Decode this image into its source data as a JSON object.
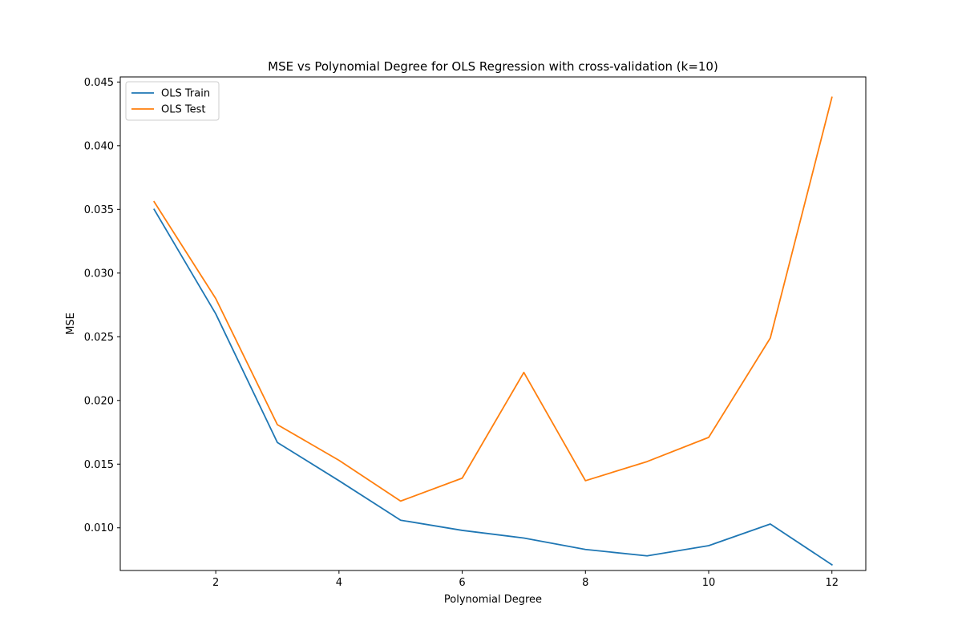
{
  "chart_data": {
    "type": "line",
    "title": "MSE vs Polynomial Degree for OLS Regression with cross-validation (k=10)",
    "xlabel": "Polynomial Degree",
    "ylabel": "MSE",
    "xlim": [
      0.45,
      12.55
    ],
    "ylim": [
      0.00665,
      0.0454
    ],
    "xticks": [
      2,
      4,
      6,
      8,
      10,
      12
    ],
    "yticks": [
      0.01,
      0.015,
      0.02,
      0.025,
      0.03,
      0.035,
      0.04,
      0.045
    ],
    "ytick_labels": [
      "0.010",
      "0.015",
      "0.020",
      "0.025",
      "0.030",
      "0.035",
      "0.040",
      "0.045"
    ],
    "grid": false,
    "legend_position": "top-left",
    "x": [
      1,
      2,
      3,
      4,
      5,
      6,
      7,
      8,
      9,
      10,
      11,
      12
    ],
    "series": [
      {
        "name": "OLS Train",
        "color": "#1f77b4",
        "values": [
          0.035,
          0.0268,
          0.0167,
          0.0137,
          0.0106,
          0.0098,
          0.0092,
          0.0083,
          0.0078,
          0.0086,
          0.0103,
          0.0071
        ]
      },
      {
        "name": "OLS Test",
        "color": "#ff7f0e",
        "values": [
          0.0356,
          0.028,
          0.0181,
          0.0153,
          0.0121,
          0.0139,
          0.0222,
          0.0137,
          0.0152,
          0.0171,
          0.0249,
          0.0438
        ]
      }
    ]
  }
}
